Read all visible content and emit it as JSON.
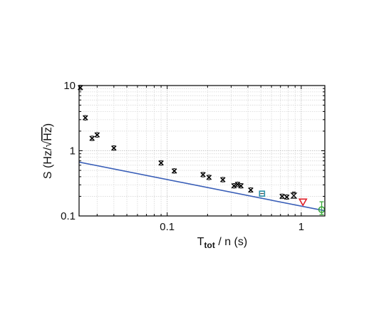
{
  "chart_data": {
    "type": "scatter",
    "title": "",
    "xlabel": {
      "main": "T",
      "sub": "tot",
      "rest": " / n (s)"
    },
    "ylabel": {
      "prefix": "S (Hz/",
      "radical": "√",
      "radicand": "Hz",
      "suffix": ")"
    },
    "x_scale": "log",
    "y_scale": "log",
    "xlim": [
      0.022,
      1.5
    ],
    "ylim": [
      0.1,
      10
    ],
    "grid": true,
    "x_tick_labels": [
      {
        "value": 0.1,
        "label": "0.1"
      },
      {
        "value": 1,
        "label": "1"
      }
    ],
    "y_tick_labels": [
      {
        "value": 0.1,
        "label": "0.1"
      },
      {
        "value": 1,
        "label": "1"
      },
      {
        "value": 10,
        "label": "10"
      }
    ],
    "series": [
      {
        "marker": "x",
        "color": "#000000",
        "points": [
          {
            "x": 0.0225,
            "y": 9.3
          },
          {
            "x": 0.0245,
            "y": 3.2
          },
          {
            "x": 0.0275,
            "y": 1.55
          },
          {
            "x": 0.03,
            "y": 1.75
          },
          {
            "x": 0.04,
            "y": 1.1
          },
          {
            "x": 0.09,
            "y": 0.65
          },
          {
            "x": 0.113,
            "y": 0.49
          },
          {
            "x": 0.185,
            "y": 0.43
          },
          {
            "x": 0.205,
            "y": 0.39
          },
          {
            "x": 0.26,
            "y": 0.36
          },
          {
            "x": 0.315,
            "y": 0.29
          },
          {
            "x": 0.335,
            "y": 0.305
          },
          {
            "x": 0.355,
            "y": 0.29
          },
          {
            "x": 0.42,
            "y": 0.25
          },
          {
            "x": 0.72,
            "y": 0.2
          },
          {
            "x": 0.78,
            "y": 0.195
          }
        ]
      },
      {
        "marker": "hourglass",
        "color": "#000000",
        "points": [
          {
            "x": 0.88,
            "y": 0.205
          }
        ]
      },
      {
        "marker": "square",
        "color": "#2a8fa8",
        "points": [
          {
            "x": 0.51,
            "y": 0.22
          }
        ]
      },
      {
        "marker": "triangle-down",
        "color": "#e0202a",
        "points": [
          {
            "x": 1.03,
            "y": 0.165
          }
        ]
      },
      {
        "marker": "circle",
        "color": "#3aa83a",
        "points": [
          {
            "x": 1.42,
            "y": 0.125,
            "err_low": 0.105,
            "err_high": 0.165
          }
        ]
      }
    ],
    "lines": [
      {
        "color": "#3a5fb8",
        "points": [
          {
            "x": 0.022,
            "y": 0.67
          },
          {
            "x": 1.5,
            "y": 0.12
          }
        ]
      }
    ]
  }
}
